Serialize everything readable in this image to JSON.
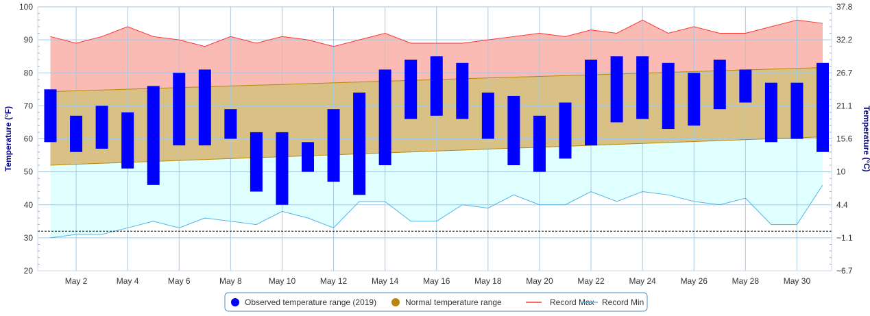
{
  "chart_data": {
    "type": "bar",
    "title": "",
    "x": [
      1,
      2,
      3,
      4,
      5,
      6,
      7,
      8,
      9,
      10,
      11,
      12,
      13,
      14,
      15,
      16,
      17,
      18,
      19,
      20,
      21,
      22,
      23,
      24,
      25,
      26,
      27,
      28,
      29,
      30,
      31
    ],
    "x_tick_labels": [
      "May 2",
      "May 4",
      "May 6",
      "May 8",
      "May 10",
      "May 12",
      "May 14",
      "May 16",
      "May 18",
      "May 20",
      "May 22",
      "May 24",
      "May 26",
      "May 28",
      "May 30"
    ],
    "x_tick_days": [
      2,
      4,
      6,
      8,
      10,
      12,
      14,
      16,
      18,
      20,
      22,
      24,
      26,
      28,
      30
    ],
    "ylabel": "Temperature (°F)",
    "ylabel_right": "Temperature (°C)",
    "ylim": [
      20,
      100
    ],
    "y_ticks": [
      "20",
      "30",
      "40",
      "50",
      "60",
      "70",
      "80",
      "90",
      "100"
    ],
    "y_right_ticks": [
      "−6.7",
      "−1.1",
      "4.4",
      "10",
      "15.6",
      "21.1",
      "26.7",
      "32.2",
      "37.8"
    ],
    "freezing_line": 32,
    "grid": true,
    "legend_position": "bottom-center",
    "series": [
      {
        "name": "Observed temperature range (2019)",
        "kind": "range-bar",
        "color": "#0000ff",
        "low": [
          59,
          56,
          57,
          51,
          46,
          58,
          58,
          60,
          44,
          40,
          50,
          47,
          43,
          52,
          66,
          67,
          66,
          60,
          52,
          50,
          54,
          58,
          65,
          66,
          63,
          64,
          69,
          71,
          59,
          60,
          56
        ],
        "high": [
          75,
          67,
          70,
          68,
          76,
          80,
          81,
          69,
          62,
          62,
          59,
          69,
          74,
          81,
          84,
          85,
          83,
          74,
          73,
          67,
          71,
          84,
          85,
          85,
          83,
          80,
          84,
          81,
          77,
          77,
          83
        ]
      },
      {
        "name": "Normal temperature range",
        "kind": "area-range",
        "color": "#b8860b",
        "fill": "#d9c185",
        "low_start": 52,
        "low_end": 60.6,
        "high_start": 74.3,
        "high_end": 81.6
      },
      {
        "name": "Record Max",
        "kind": "line",
        "color": "#ff3333",
        "fill": "#f9bbb4",
        "values": [
          91,
          89,
          91,
          94,
          91,
          90,
          88,
          91,
          89,
          91,
          90,
          88,
          90,
          92,
          89,
          89,
          89,
          90,
          91,
          92,
          91,
          93,
          92,
          96,
          92,
          94,
          92,
          92,
          94,
          96,
          95
        ]
      },
      {
        "name": "Record Min",
        "kind": "line",
        "color": "#4fb3e8",
        "fill": "#e0ffff",
        "values": [
          30,
          31,
          31,
          33,
          35,
          33,
          36,
          35,
          34,
          38,
          36,
          33,
          41,
          41,
          35,
          35,
          40,
          39,
          43,
          40,
          40,
          44,
          41,
          44,
          43,
          41,
          40,
          42,
          34,
          34,
          46
        ]
      }
    ]
  },
  "legend": {
    "items": [
      {
        "label": "Observed temperature range (2019)",
        "color": "#0000ff"
      },
      {
        "label": "Normal temperature range",
        "color": "#b8860b"
      },
      {
        "label": "Record Max",
        "color": "#ff3333"
      },
      {
        "label": "Record Min",
        "color": "#4fb3e8"
      }
    ]
  }
}
